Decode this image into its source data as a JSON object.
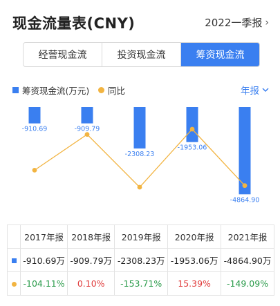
{
  "header": {
    "title": "现金流量表(CNY)",
    "period": "2022一季报"
  },
  "tabs": [
    {
      "label": "经营现金流",
      "active": false
    },
    {
      "label": "投资现金流",
      "active": false
    },
    {
      "label": "筹资现金流",
      "active": true
    }
  ],
  "legend": {
    "bar_label": "筹资现金流(万元)",
    "line_label": "同比",
    "period_select": "年报"
  },
  "colors": {
    "accent": "#3a7ff0",
    "line": "#f2b441",
    "positive": "#e03b3b",
    "negative": "#2a9b4a"
  },
  "chart_data": {
    "type": "bar",
    "categories": [
      "2017年报",
      "2018年报",
      "2019年报",
      "2020年报",
      "2021年报"
    ],
    "series": [
      {
        "name": "筹资现金流(万元)",
        "type": "bar",
        "values": [
          -910.69,
          -909.79,
          -2308.23,
          -1953.06,
          -4864.9
        ],
        "labels": [
          "-910.69",
          "-909.79",
          "-2308.23",
          "-1953.06",
          "-4864.90"
        ]
      },
      {
        "name": "同比",
        "type": "line",
        "unit": "%",
        "values": [
          -104.11,
          0.1,
          -153.71,
          15.39,
          -149.09
        ]
      }
    ],
    "ylim": [
      -5200,
      0
    ]
  },
  "table": {
    "headers": [
      "2017年报",
      "2018年报",
      "2019年报",
      "2020年报",
      "2021年报"
    ],
    "row_values": [
      "-910.69万",
      "-909.79万",
      "-2308.23万",
      "-1953.06万",
      "-4864.90万"
    ],
    "row_yoy": [
      "-104.11%",
      "0.10%",
      "-153.71%",
      "15.39%",
      "-149.09%"
    ]
  }
}
